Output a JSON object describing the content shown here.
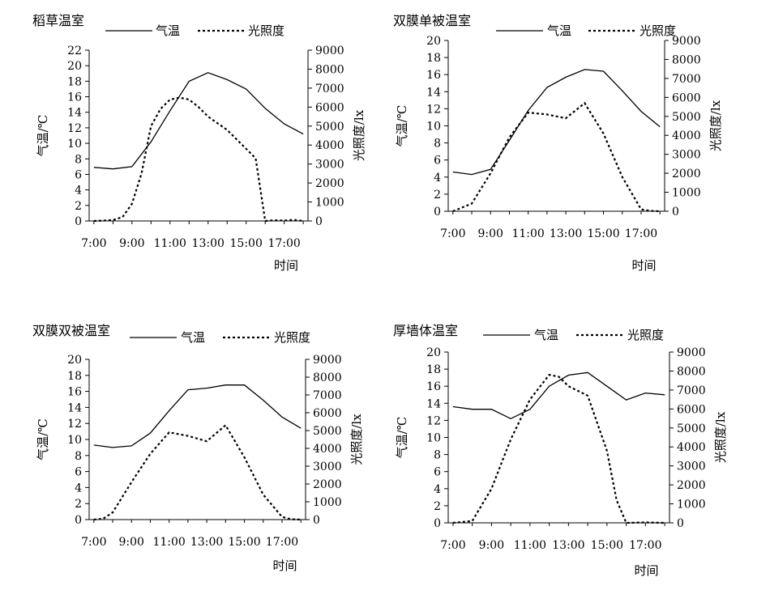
{
  "legend": {
    "temp_label": "气温",
    "light_label": "光照度"
  },
  "axes": {
    "left_label": "气温/℃",
    "right_label": "光照度/lx",
    "x_label": "时间",
    "x_ticks": [
      "7:00",
      "9:00",
      "11:00",
      "13:00",
      "15:00",
      "17:00"
    ]
  },
  "chart_data": [
    {
      "type": "line",
      "title": "稻草温室",
      "xlabel": "时间",
      "ylabel": "气温/℃",
      "y2label": "光照度/lx",
      "x": [
        "7:00",
        "8:00",
        "9:00",
        "10:00",
        "11:00",
        "12:00",
        "13:00",
        "14:00",
        "15:00",
        "16:00",
        "17:00",
        "18:00"
      ],
      "ylim": [
        0,
        22
      ],
      "yticks": [
        0,
        2,
        4,
        6,
        8,
        10,
        12,
        14,
        16,
        18,
        20,
        22
      ],
      "y2lim": [
        0,
        9000
      ],
      "y2ticks": [
        0,
        1000,
        2000,
        3000,
        4000,
        5000,
        6000,
        7000,
        8000,
        9000
      ],
      "series": [
        {
          "name": "气温",
          "axis": "left",
          "style": "solid",
          "points": [
            [
              7,
              6.9
            ],
            [
              8,
              6.7
            ],
            [
              9,
              7.0
            ],
            [
              10,
              10.2
            ],
            [
              11,
              14.2
            ],
            [
              12,
              18.0
            ],
            [
              13,
              19.1
            ],
            [
              14,
              18.2
            ],
            [
              15,
              17.0
            ],
            [
              16,
              14.5
            ],
            [
              17,
              12.5
            ],
            [
              18,
              11.2
            ]
          ]
        },
        {
          "name": "光照度",
          "axis": "right",
          "style": "dotted",
          "points": [
            [
              7,
              0
            ],
            [
              7.5,
              20
            ],
            [
              8,
              50
            ],
            [
              8.5,
              200
            ],
            [
              9,
              900
            ],
            [
              9.5,
              2500
            ],
            [
              10,
              5000
            ],
            [
              10.5,
              5900
            ],
            [
              11,
              6400
            ],
            [
              11.5,
              6500
            ],
            [
              12,
              6400
            ],
            [
              12.5,
              6000
            ],
            [
              13,
              5500
            ],
            [
              14,
              4800
            ],
            [
              15,
              3800
            ],
            [
              15.5,
              3300
            ],
            [
              16,
              0
            ],
            [
              16.5,
              40
            ],
            [
              17,
              20
            ],
            [
              17.5,
              60
            ],
            [
              18,
              0
            ]
          ]
        }
      ]
    },
    {
      "type": "line",
      "title": "双膜单被温室",
      "xlabel": "时间",
      "ylabel": "气温/℃",
      "y2label": "光照度/lx",
      "x": [
        "7:00",
        "8:00",
        "9:00",
        "10:00",
        "11:00",
        "12:00",
        "13:00",
        "14:00",
        "15:00",
        "16:00",
        "17:00",
        "18:00"
      ],
      "ylim": [
        0,
        20
      ],
      "yticks": [
        0,
        2,
        4,
        6,
        8,
        10,
        12,
        14,
        16,
        18,
        20
      ],
      "y2lim": [
        0,
        9000
      ],
      "y2ticks": [
        0,
        1000,
        2000,
        3000,
        4000,
        5000,
        6000,
        7000,
        8000,
        9000
      ],
      "series": [
        {
          "name": "气温",
          "axis": "left",
          "style": "solid",
          "points": [
            [
              7,
              4.6
            ],
            [
              8,
              4.3
            ],
            [
              9,
              4.9
            ],
            [
              10,
              8.3
            ],
            [
              11,
              11.8
            ],
            [
              12,
              14.5
            ],
            [
              13,
              15.7
            ],
            [
              14,
              16.6
            ],
            [
              15,
              16.4
            ],
            [
              16,
              14.1
            ],
            [
              17,
              11.7
            ],
            [
              18,
              9.9
            ]
          ]
        },
        {
          "name": "光照度",
          "axis": "right",
          "style": "dotted",
          "points": [
            [
              7,
              0
            ],
            [
              8,
              400
            ],
            [
              9,
              2000
            ],
            [
              10,
              3900
            ],
            [
              11,
              5200
            ],
            [
              12,
              5100
            ],
            [
              13,
              4900
            ],
            [
              14,
              5700
            ],
            [
              15,
              4100
            ],
            [
              16,
              1800
            ],
            [
              17,
              100
            ],
            [
              17.5,
              20
            ],
            [
              18,
              0
            ]
          ]
        }
      ]
    },
    {
      "type": "line",
      "title": "双膜双被温室",
      "xlabel": "时间",
      "ylabel": "气温/℃",
      "y2label": "光照度/lx",
      "x": [
        "7:00",
        "8:00",
        "9:00",
        "10:00",
        "11:00",
        "12:00",
        "13:00",
        "14:00",
        "15:00",
        "16:00",
        "17:00",
        "18:00"
      ],
      "ylim": [
        0,
        20
      ],
      "yticks": [
        0,
        2,
        4,
        6,
        8,
        10,
        12,
        14,
        16,
        18,
        20
      ],
      "y2lim": [
        0,
        9000
      ],
      "y2ticks": [
        0,
        1000,
        2000,
        3000,
        4000,
        5000,
        6000,
        7000,
        8000,
        9000
      ],
      "series": [
        {
          "name": "气温",
          "axis": "left",
          "style": "solid",
          "points": [
            [
              7,
              9.3
            ],
            [
              8,
              9.0
            ],
            [
              9,
              9.2
            ],
            [
              10,
              10.8
            ],
            [
              11,
              13.6
            ],
            [
              12,
              16.2
            ],
            [
              13,
              16.4
            ],
            [
              14,
              16.8
            ],
            [
              15,
              16.8
            ],
            [
              16,
              14.9
            ],
            [
              17,
              12.8
            ],
            [
              18,
              11.4
            ]
          ]
        },
        {
          "name": "光照度",
          "axis": "right",
          "style": "dotted",
          "points": [
            [
              7,
              0
            ],
            [
              7.5,
              50
            ],
            [
              8,
              400
            ],
            [
              9,
              2100
            ],
            [
              10,
              3700
            ],
            [
              11,
              4900
            ],
            [
              12,
              4700
            ],
            [
              13,
              4400
            ],
            [
              14,
              5300
            ],
            [
              15,
              3500
            ],
            [
              16,
              1400
            ],
            [
              17,
              150
            ],
            [
              17.5,
              20
            ],
            [
              18,
              0
            ]
          ]
        }
      ]
    },
    {
      "type": "line",
      "title": "厚墙体温室",
      "xlabel": "时间",
      "ylabel": "气温/℃",
      "y2label": "光照度/lx",
      "x": [
        "7:00",
        "8:00",
        "9:00",
        "10:00",
        "11:00",
        "12:00",
        "13:00",
        "14:00",
        "15:00",
        "16:00",
        "17:00",
        "18:00"
      ],
      "ylim": [
        0,
        20
      ],
      "yticks": [
        0,
        2,
        4,
        6,
        8,
        10,
        12,
        14,
        16,
        18,
        20
      ],
      "y2lim": [
        0,
        9000
      ],
      "y2ticks": [
        0,
        1000,
        2000,
        3000,
        4000,
        5000,
        6000,
        7000,
        8000,
        9000
      ],
      "series": [
        {
          "name": "气温",
          "axis": "left",
          "style": "solid",
          "points": [
            [
              7,
              13.6
            ],
            [
              8,
              13.3
            ],
            [
              9,
              13.3
            ],
            [
              10,
              12.2
            ],
            [
              11,
              13.3
            ],
            [
              12,
              16.0
            ],
            [
              13,
              17.3
            ],
            [
              14,
              17.6
            ],
            [
              15,
              16.0
            ],
            [
              16,
              14.4
            ],
            [
              17,
              15.2
            ],
            [
              18,
              15.0
            ]
          ]
        },
        {
          "name": "光照度",
          "axis": "right",
          "style": "dotted",
          "points": [
            [
              7,
              0
            ],
            [
              8,
              100
            ],
            [
              9,
              1800
            ],
            [
              10,
              4400
            ],
            [
              11,
              6500
            ],
            [
              12,
              7800
            ],
            [
              12.5,
              7700
            ],
            [
              13,
              7200
            ],
            [
              14,
              6700
            ],
            [
              15,
              3800
            ],
            [
              15.5,
              1200
            ],
            [
              16,
              0
            ],
            [
              17,
              20
            ],
            [
              18,
              0
            ]
          ]
        }
      ]
    }
  ]
}
